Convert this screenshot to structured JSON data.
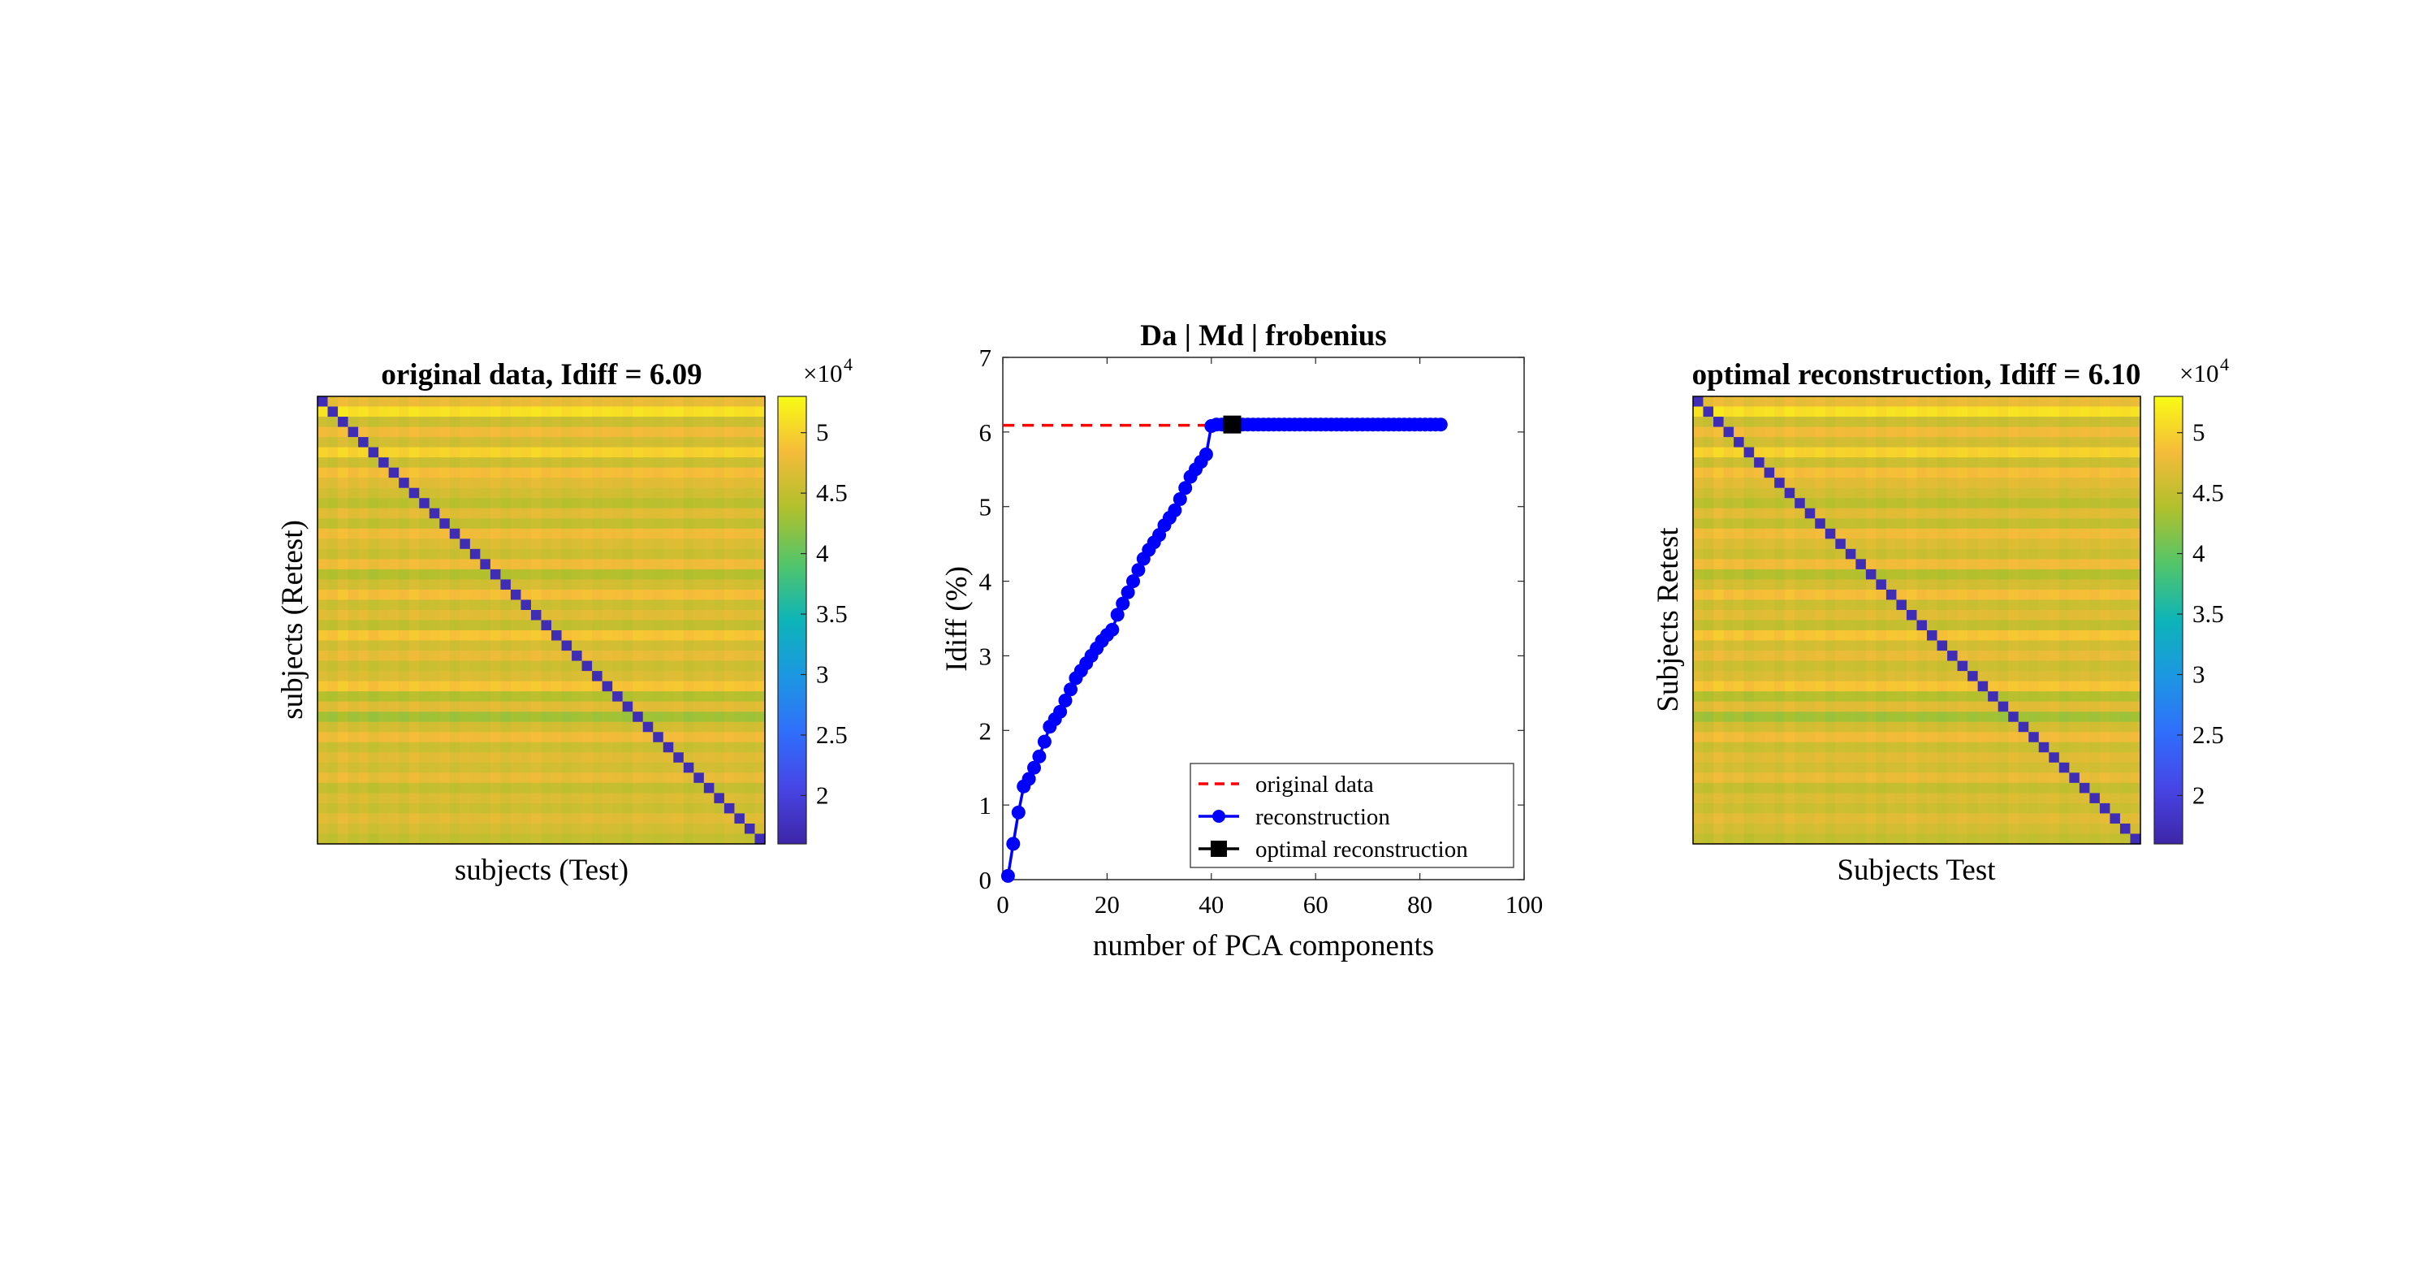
{
  "chart_data": [
    {
      "type": "heatmap",
      "title": "original data, Idiff = 6.09",
      "xlabel": "subjects (Test)",
      "ylabel": "subjects (Retest)",
      "n_subjects": 44,
      "colorbar": {
        "exponent_label": "×10",
        "exponent_power": "4",
        "ticks": [
          2,
          2.5,
          3,
          3.5,
          4,
          4.5,
          5
        ],
        "range": [
          1.6,
          5.3
        ]
      },
      "diagonal_value": 1.7,
      "off_diagonal_range": [
        4.3,
        5.2
      ],
      "row_values": [
        4.75,
        5.1,
        4.55,
        4.8,
        4.6,
        5.0,
        4.55,
        4.85,
        4.7,
        4.6,
        4.45,
        4.7,
        4.5,
        4.8,
        4.65,
        4.55,
        4.8,
        4.4,
        4.6,
        4.85,
        4.55,
        4.7,
        4.5,
        4.9,
        4.6,
        4.75,
        4.55,
        4.65,
        4.9,
        4.4,
        4.7,
        4.3,
        4.6,
        4.8,
        4.55,
        4.7,
        4.6,
        4.75,
        4.5,
        4.65,
        4.55,
        4.7,
        4.6,
        4.5
      ],
      "col_offsets": [
        0.05,
        -0.1,
        0.2,
        -0.05,
        0.1,
        -0.15,
        0.0,
        0.05,
        -0.1,
        0.15,
        -0.05,
        0.0,
        0.1,
        -0.1,
        0.05,
        0.0,
        -0.05,
        0.1,
        -0.1,
        0.05,
        0.0,
        0.15,
        -0.05,
        0.05,
        -0.1,
        0.0,
        0.1,
        -0.05,
        0.05,
        0.0,
        -0.1,
        0.1,
        0.0,
        -0.05,
        0.05,
        0.1,
        -0.1,
        0.0,
        0.05,
        -0.05,
        0.1,
        0.0,
        -0.05,
        0.05
      ]
    },
    {
      "type": "line",
      "title": "Da | Md | frobenius",
      "xlabel": "number of PCA components",
      "ylabel": "Idiff (%)",
      "xlim": [
        0,
        100
      ],
      "ylim": [
        0,
        7
      ],
      "xticks": [
        0,
        20,
        40,
        60,
        80,
        100
      ],
      "yticks": [
        0,
        1,
        2,
        3,
        4,
        5,
        6,
        7
      ],
      "series": [
        {
          "name": "original data",
          "style": "dashed",
          "color": "#ff0000",
          "x": [
            0,
            43
          ],
          "y": [
            6.09,
            6.09
          ]
        },
        {
          "name": "reconstruction",
          "style": "solid-circle",
          "color": "#0000ff",
          "x": [
            1,
            2,
            3,
            4,
            5,
            6,
            7,
            8,
            9,
            10,
            11,
            12,
            13,
            14,
            15,
            16,
            17,
            18,
            19,
            20,
            21,
            22,
            23,
            24,
            25,
            26,
            27,
            28,
            29,
            30,
            31,
            32,
            33,
            34,
            35,
            36,
            37,
            38,
            39,
            40,
            41,
            42,
            43,
            44,
            45,
            46,
            47,
            48,
            49,
            50,
            51,
            52,
            53,
            54,
            55,
            56,
            57,
            58,
            59,
            60,
            61,
            62,
            63,
            64,
            65,
            66,
            67,
            68,
            69,
            70,
            71,
            72,
            73,
            74,
            75,
            76,
            77,
            78,
            79,
            80,
            81,
            82,
            83,
            84
          ],
          "y": [
            0.05,
            0.48,
            0.9,
            1.25,
            1.35,
            1.5,
            1.65,
            1.85,
            2.05,
            2.15,
            2.25,
            2.4,
            2.55,
            2.7,
            2.8,
            2.9,
            3.0,
            3.1,
            3.2,
            3.28,
            3.35,
            3.55,
            3.7,
            3.85,
            4.0,
            4.15,
            4.3,
            4.42,
            4.52,
            4.62,
            4.75,
            4.85,
            4.95,
            5.1,
            5.25,
            5.4,
            5.5,
            5.6,
            5.7,
            6.08,
            6.1,
            6.1,
            6.1,
            6.1,
            6.1,
            6.1,
            6.1,
            6.1,
            6.1,
            6.1,
            6.1,
            6.1,
            6.1,
            6.1,
            6.1,
            6.1,
            6.1,
            6.1,
            6.1,
            6.1,
            6.1,
            6.1,
            6.1,
            6.1,
            6.1,
            6.1,
            6.1,
            6.1,
            6.1,
            6.1,
            6.1,
            6.1,
            6.1,
            6.1,
            6.1,
            6.1,
            6.1,
            6.1,
            6.1,
            6.1,
            6.1,
            6.1,
            6.1,
            6.1
          ]
        },
        {
          "name": "optimal reconstruction",
          "style": "square-marker",
          "color": "#000000",
          "x": [
            44
          ],
          "y": [
            6.1
          ]
        }
      ],
      "legend_position": "bottom-right"
    },
    {
      "type": "heatmap",
      "title": "optimal reconstruction, Idiff = 6.10",
      "xlabel": "Subjects Test",
      "ylabel": "Subjects Retest",
      "n_subjects": 44,
      "colorbar": {
        "exponent_label": "×10",
        "exponent_power": "4",
        "ticks": [
          2,
          2.5,
          3,
          3.5,
          4,
          4.5,
          5
        ],
        "range": [
          1.6,
          5.3
        ]
      },
      "diagonal_value": 1.7,
      "off_diagonal_range": [
        4.3,
        5.2
      ],
      "row_values": [
        4.75,
        5.1,
        4.55,
        4.8,
        4.6,
        5.0,
        4.55,
        4.85,
        4.7,
        4.6,
        4.45,
        4.7,
        4.5,
        4.8,
        4.65,
        4.55,
        4.8,
        4.4,
        4.6,
        4.85,
        4.55,
        4.7,
        4.5,
        4.9,
        4.6,
        4.75,
        4.55,
        4.65,
        4.9,
        4.4,
        4.7,
        4.3,
        4.6,
        4.8,
        4.55,
        4.7,
        4.6,
        4.75,
        4.5,
        4.65,
        4.55,
        4.7,
        4.6,
        4.5
      ],
      "col_offsets": [
        0.05,
        -0.1,
        0.2,
        -0.05,
        0.1,
        -0.15,
        0.0,
        0.05,
        -0.1,
        0.15,
        -0.05,
        0.0,
        0.1,
        -0.1,
        0.05,
        0.0,
        -0.05,
        0.1,
        -0.1,
        0.05,
        0.0,
        0.15,
        -0.05,
        0.05,
        -0.1,
        0.0,
        0.1,
        -0.05,
        0.05,
        0.0,
        -0.1,
        0.1,
        0.0,
        -0.05,
        0.05,
        0.1,
        -0.1,
        0.0,
        0.05,
        -0.05,
        0.1,
        0.0,
        -0.05,
        0.05
      ]
    }
  ]
}
